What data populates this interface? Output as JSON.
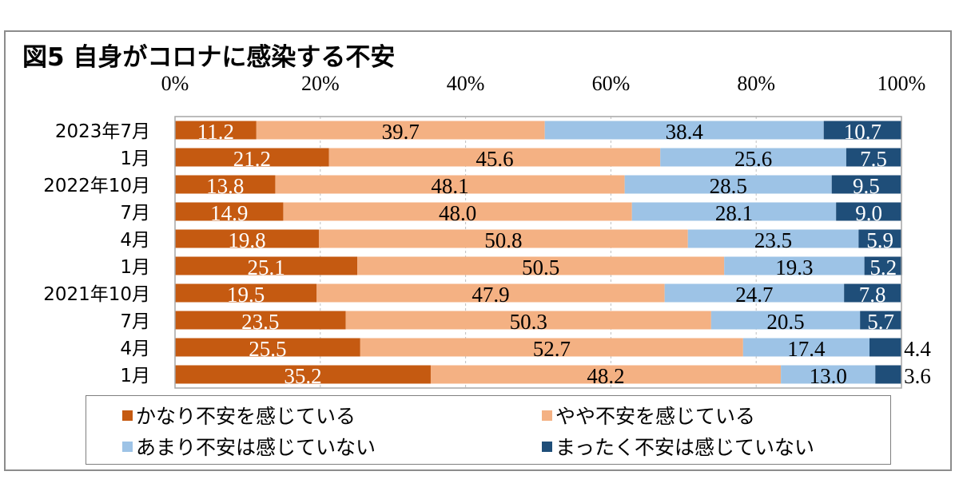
{
  "chart_data": {
    "type": "bar",
    "orientation": "horizontal",
    "stacked": "100%",
    "title": "図5 自身がコロナに感染する不安",
    "xlabel": "",
    "ylabel": "",
    "xlim": [
      0,
      100
    ],
    "x_ticks": [
      "0%",
      "20%",
      "40%",
      "60%",
      "80%",
      "100%"
    ],
    "x_tick_values": [
      0,
      20,
      40,
      60,
      80,
      100
    ],
    "grid": "vertical dashed",
    "legend_position": "bottom",
    "categories": [
      "2023年7月",
      "1月",
      "2022年10月",
      "7月",
      "4月",
      "1月",
      "2021年10月",
      "7月",
      "4月",
      "1月"
    ],
    "series": [
      {
        "name": "かなり不安を感じている",
        "color": "#c55a11",
        "label_color": "#ffffff",
        "values": [
          11.2,
          21.2,
          13.8,
          14.9,
          19.8,
          25.1,
          19.5,
          23.5,
          25.5,
          35.2
        ]
      },
      {
        "name": "やや不安を感じている",
        "color": "#f4b183",
        "label_color": "#000000",
        "values": [
          39.7,
          45.6,
          48.1,
          48.0,
          50.8,
          50.5,
          47.9,
          50.3,
          52.7,
          48.2
        ]
      },
      {
        "name": "あまり不安は感じていない",
        "color": "#9dc3e6",
        "label_color": "#000000",
        "values": [
          38.4,
          25.6,
          28.5,
          28.1,
          23.5,
          19.3,
          24.7,
          20.5,
          17.4,
          13.0
        ]
      },
      {
        "name": "まったく不安は感じていない",
        "color": "#1f4e79",
        "label_color": "#ffffff",
        "values": [
          10.7,
          7.5,
          9.5,
          9.0,
          5.9,
          5.2,
          7.8,
          5.7,
          4.4,
          3.6
        ]
      }
    ],
    "outside_labels": [
      {
        "category_index": 8,
        "series_index": 3
      },
      {
        "category_index": 9,
        "series_index": 3
      }
    ]
  }
}
